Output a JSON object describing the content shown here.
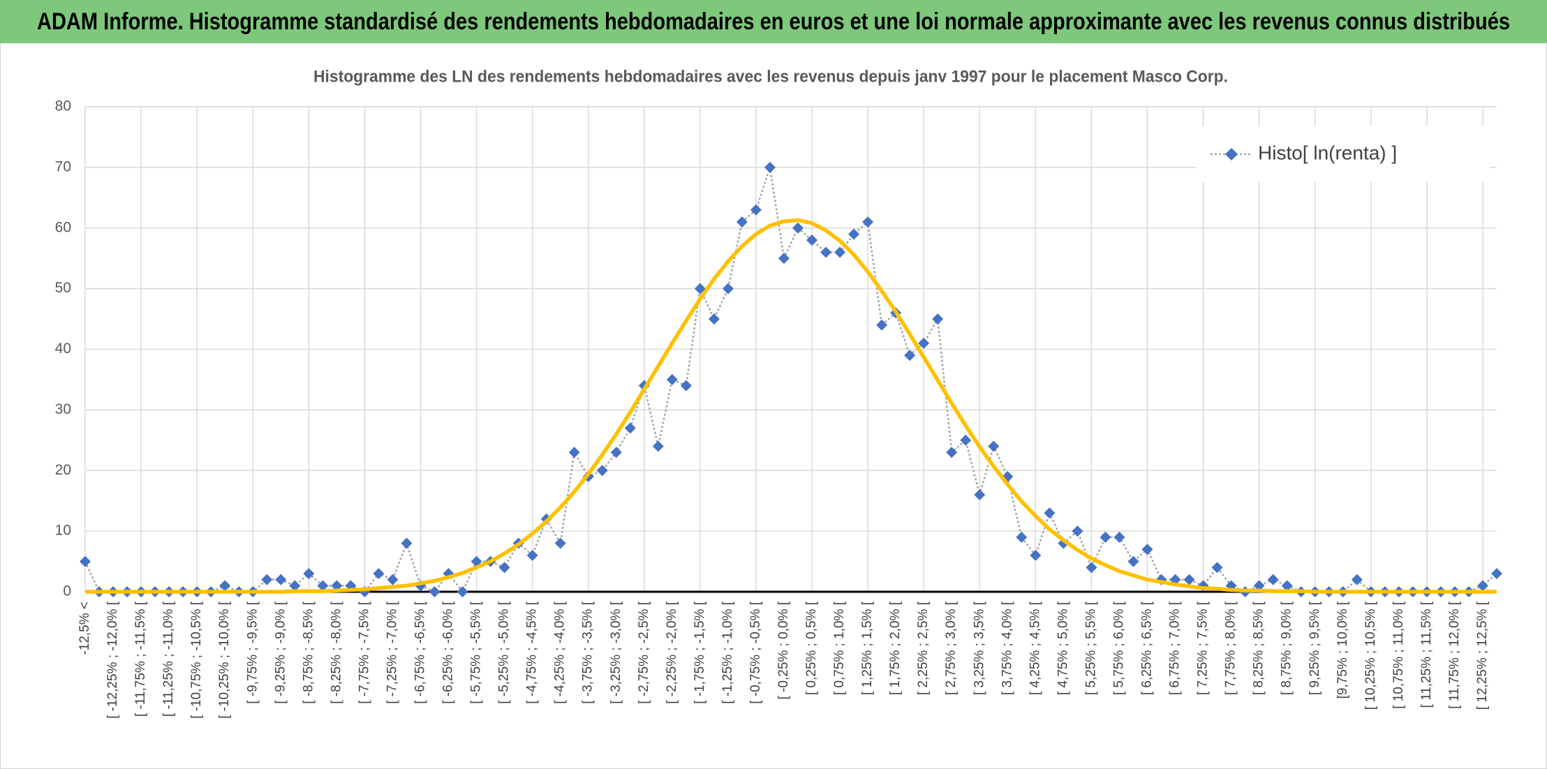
{
  "chart_data": {
    "type": "line",
    "header": "ADAM Informe. Histogramme standardisé des rendements hebdomadaires en euros et une loi normale approximante avec les revenus connus distribués",
    "title": "Histogramme des LN des rendements hebdomadaires avec les revenus depuis janv 1997 pour le placement Masco Corp.",
    "categories": [
      "-12,5% <",
      null,
      "[ -12,25% ; -12,0% [",
      null,
      "[ -11,75% ; -11,5% [",
      null,
      "[ -11,25% ; -11,0% [",
      null,
      "[ -10,75% ; -10,5% [",
      null,
      "[ -10,25% ; -10,0% [",
      null,
      "[ -9,75% ; -9,5% [",
      null,
      "[ -9,25% ; -9,0% [",
      null,
      "[ -8,75% ; -8,5% [",
      null,
      "[ -8,25% ; -8,0% [",
      null,
      "[ -7,75% ; -7,5% [",
      null,
      "[ -7,25% ; -7,0% [",
      null,
      "[ -6,75% ; -6,5% [",
      null,
      "[ -6,25% ; -6,0% [",
      null,
      "[ -5,75% ; -5,5% [",
      null,
      "[ -5,25% ; -5,0% [",
      null,
      "[ -4,75% ; -4,5% [",
      null,
      "[ -4,25% ; -4,0% [",
      null,
      "[ -3,75% ; -3,5% [",
      null,
      "[ -3,25% ; -3,0% [",
      null,
      "[ -2,75% ; -2,5% [",
      null,
      "[ -2,25% ; -2,0% [",
      null,
      "[ -1,75% ; -1,5% [",
      null,
      "[ -1,25% ; -1,0% [",
      null,
      "[ -0,75% ; -0,5% [",
      null,
      "[ -0,25% ; 0,0% [",
      null,
      "[ 0,25% ; 0,5% [",
      null,
      "[ 0,75% ; 1,0% [",
      null,
      "[ 1,25% ; 1,5% [",
      null,
      "[ 1,75% ; 2,0% [",
      null,
      "[ 2,25% ; 2,5% [",
      null,
      "[ 2,75% ; 3,0% [",
      null,
      "[ 3,25% ; 3,5% [",
      null,
      "[ 3,75% ; 4,0% [",
      null,
      "[ 4,25% ; 4,5% [",
      null,
      "[ 4,75% ; 5,0% [",
      null,
      "[ 5,25% ; 5,5% [",
      null,
      "[ 5,75% ; 6,0% [",
      null,
      "[ 6,25% ; 6,5% [",
      null,
      "[ 6,75% ; 7,0% [",
      null,
      "[ 7,25% ; 7,5% [",
      null,
      "[ 7,75% ; 8,0% [",
      null,
      "[ 8,25% ; 8,5% [",
      null,
      "[ 8,75% ; 9,0% [",
      null,
      "[ 9,25% ; 9,5% [",
      null,
      "[9,75% ; 10,0% [",
      null,
      "[ 10,25% ; 10,5% [",
      null,
      "[ 10,75% ; 11,0% [",
      null,
      "[ 11,25% ; 11,5% [",
      null,
      "[ 11,75% ; 12,0% [",
      null,
      "[ 12,25% ; 12,5% [",
      null
    ],
    "series": [
      {
        "name": "Histo[ ln(renta) ]",
        "color": "#4472c4",
        "line_color": "#a5a5a5",
        "marker": "diamond",
        "values": [
          5,
          0,
          0,
          0,
          0,
          0,
          0,
          0,
          0,
          0,
          1,
          0,
          0,
          2,
          2,
          1,
          3,
          1,
          1,
          1,
          0,
          3,
          2,
          8,
          1,
          0,
          3,
          0,
          5,
          5,
          4,
          8,
          6,
          12,
          8,
          23,
          19,
          20,
          23,
          27,
          34,
          24,
          35,
          34,
          50,
          45,
          50,
          61,
          63,
          70,
          55,
          60,
          58,
          56,
          56,
          59,
          61,
          44,
          46,
          39,
          41,
          45,
          23,
          25,
          16,
          24,
          19,
          9,
          6,
          13,
          8,
          10,
          4,
          9,
          9,
          5,
          7,
          2,
          2,
          2,
          1,
          4,
          1,
          0,
          1,
          2,
          1,
          0,
          0,
          0,
          0,
          2,
          0,
          0,
          0,
          0,
          0,
          0,
          0,
          0,
          1,
          3
        ]
      },
      {
        "color": "#ffc000",
        "values": [
          0,
          0,
          0,
          0,
          0,
          0,
          0,
          0,
          0,
          0,
          0,
          0,
          0,
          0,
          0,
          0.1,
          0.1,
          0.1,
          0.2,
          0.3,
          0.4,
          0.6,
          0.8,
          1.0,
          1.4,
          1.8,
          2.4,
          3.1,
          4.0,
          5.0,
          6.3,
          7.8,
          9.6,
          11.6,
          13.9,
          16.5,
          19.4,
          22.6,
          26.0,
          29.6,
          33.4,
          37.2,
          41.0,
          44.7,
          48.3,
          51.6,
          54.5,
          57.0,
          59.0,
          60.4,
          61.1,
          61.3,
          60.8,
          59.6,
          57.9,
          55.6,
          52.8,
          49.6,
          46.2,
          42.5,
          38.7,
          34.9,
          31.1,
          27.4,
          23.9,
          20.7,
          17.7,
          14.9,
          12.5,
          10.3,
          8.5,
          6.9,
          5.5,
          4.4,
          3.4,
          2.7,
          2.0,
          1.6,
          1.2,
          0.9,
          0.6,
          0.5,
          0.3,
          0.2,
          0.2,
          0.1,
          0.1,
          0.1,
          0,
          0,
          0,
          0,
          0,
          0,
          0,
          0,
          0,
          0,
          0,
          0,
          0,
          0
        ]
      }
    ],
    "ylim": [
      0,
      80
    ],
    "yticks": [
      0,
      10,
      20,
      30,
      40,
      50,
      60,
      70,
      80
    ],
    "grid": true,
    "legend": "upper right"
  }
}
